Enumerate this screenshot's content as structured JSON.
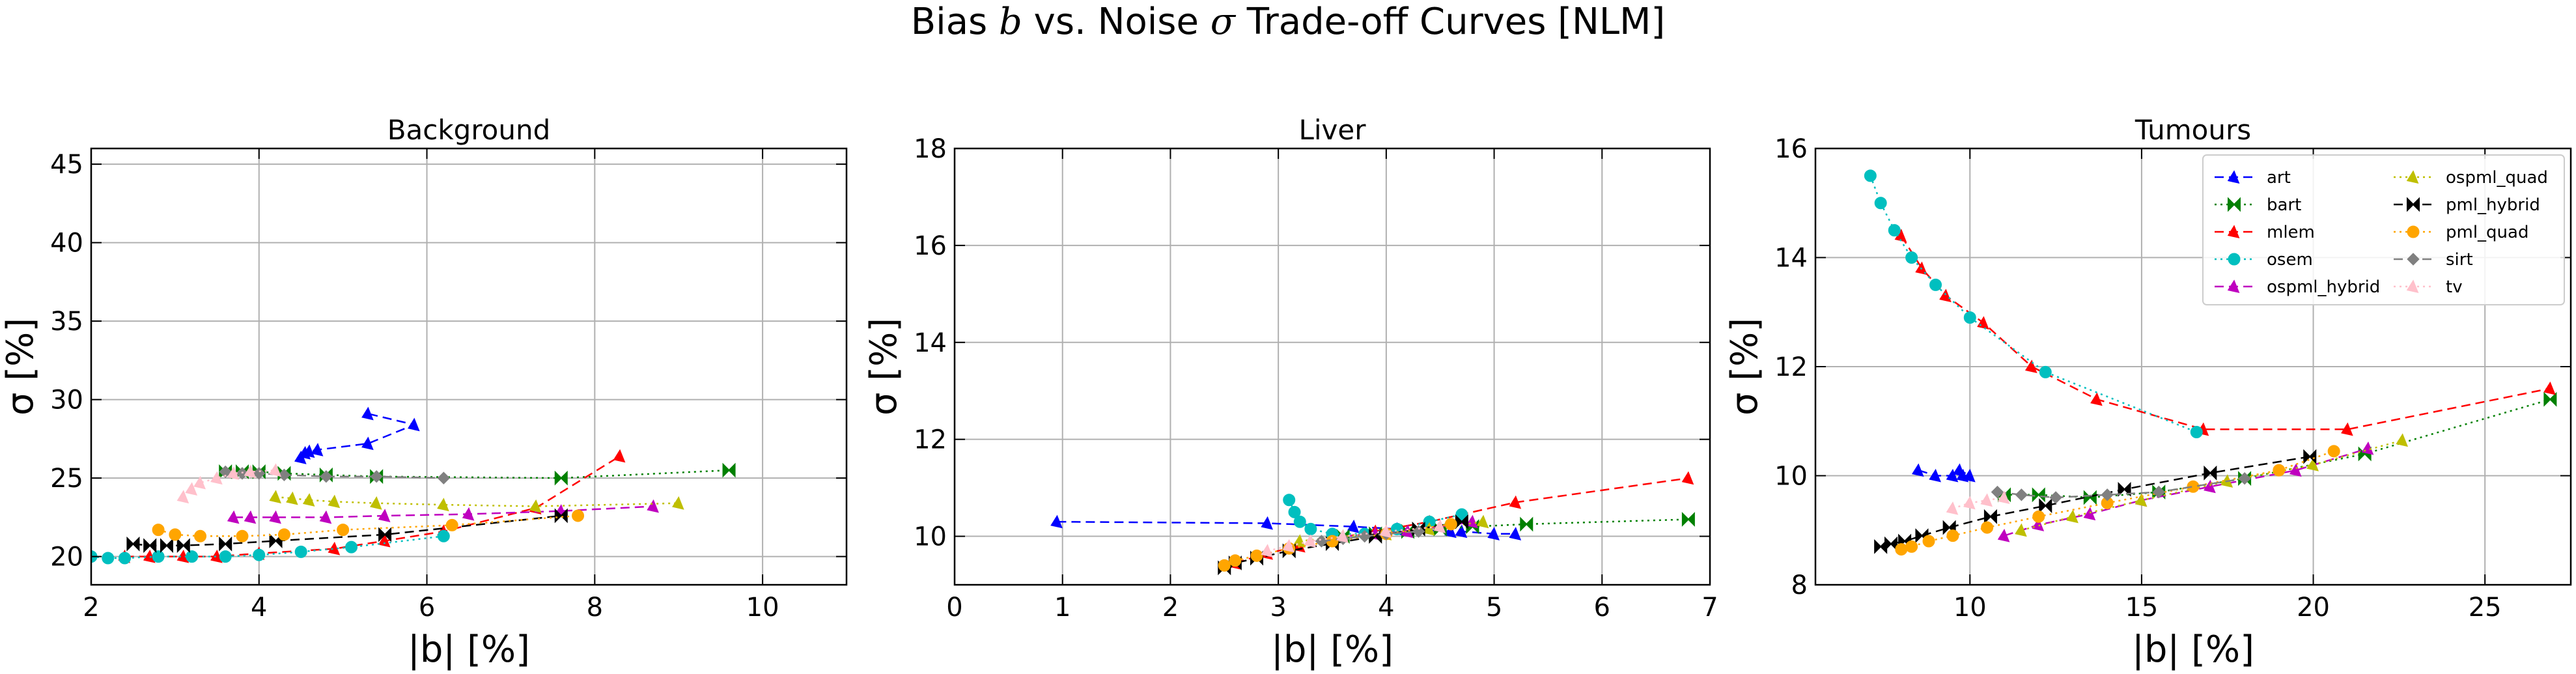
{
  "figure": {
    "title": "Bias b vs. Noise σ Trade-off Curves [NLM]",
    "title_parts": [
      "Bias ",
      "b",
      " vs. Noise ",
      "σ",
      " Trade-off Curves [NLM]"
    ]
  },
  "series_styles": [
    {
      "name": "art",
      "color": "#0000ff",
      "dash": "14 8",
      "marker": "tri"
    },
    {
      "name": "bart",
      "color": "#008000",
      "dash": "3 6",
      "marker": "bowtie"
    },
    {
      "name": "mlem",
      "color": "#ff0000",
      "dash": "14 8",
      "marker": "tri"
    },
    {
      "name": "osem",
      "color": "#00bfbf",
      "dash": "3 6",
      "marker": "circle"
    },
    {
      "name": "ospml_hybrid",
      "color": "#bf00bf",
      "dash": "14 8",
      "marker": "tri"
    },
    {
      "name": "ospml_quad",
      "color": "#bfbf00",
      "dash": "3 6",
      "marker": "tri"
    },
    {
      "name": "pml_hybrid",
      "color": "#000000",
      "dash": "14 8",
      "marker": "bowtie"
    },
    {
      "name": "pml_quad",
      "color": "#ffa500",
      "dash": "3 6",
      "marker": "circle"
    },
    {
      "name": "sirt",
      "color": "#808080",
      "dash": "14 8",
      "marker": "diamond"
    },
    {
      "name": "tv",
      "color": "#ffc0cb",
      "dash": "3 6",
      "marker": "tri"
    }
  ],
  "chart_data": [
    {
      "type": "line",
      "title": "Background",
      "xlabel": "|b| [%]",
      "ylabel": "σ [%]",
      "xlim": [
        2,
        11
      ],
      "ylim": [
        18.2,
        46
      ],
      "xticks": [
        2,
        4,
        6,
        8,
        10
      ],
      "yticks": [
        20,
        25,
        30,
        35,
        40,
        45
      ],
      "grid": true,
      "legend": false,
      "series": [
        {
          "name": "art",
          "x": [
            4.5,
            4.55,
            4.6,
            4.7,
            5.3,
            5.85,
            5.3
          ],
          "y": [
            26.3,
            26.6,
            26.7,
            26.8,
            27.2,
            28.4,
            29.1
          ]
        },
        {
          "name": "bart",
          "x": [
            3.6,
            3.8,
            4.0,
            4.3,
            4.8,
            5.4,
            7.6,
            9.6
          ],
          "y": [
            25.4,
            25.4,
            25.4,
            25.3,
            25.2,
            25.1,
            25.0,
            25.5
          ]
        },
        {
          "name": "mlem",
          "x": [
            2.4,
            2.7,
            3.1,
            3.5,
            4.0,
            4.9,
            5.5,
            6.2,
            7.3,
            8.3
          ],
          "y": [
            20.0,
            20.0,
            20.0,
            20.0,
            20.2,
            20.5,
            21.0,
            21.6,
            23.1,
            26.4
          ]
        },
        {
          "name": "osem",
          "x": [
            2.0,
            2.2,
            2.4,
            2.8,
            3.2,
            3.6,
            4.0,
            4.5,
            5.1,
            6.2
          ],
          "y": [
            20.0,
            19.9,
            19.9,
            20.0,
            20.0,
            20.0,
            20.1,
            20.3,
            20.6,
            21.3
          ]
        },
        {
          "name": "ospml_hybrid",
          "x": [
            3.7,
            3.9,
            4.2,
            4.8,
            5.5,
            6.5,
            7.6,
            8.7
          ],
          "y": [
            22.5,
            22.5,
            22.5,
            22.5,
            22.6,
            22.7,
            22.9,
            23.2
          ]
        },
        {
          "name": "ospml_quad",
          "x": [
            4.2,
            4.4,
            4.6,
            4.9,
            5.4,
            6.2,
            7.3,
            9.0
          ],
          "y": [
            23.8,
            23.7,
            23.6,
            23.5,
            23.4,
            23.3,
            23.2,
            23.4
          ]
        },
        {
          "name": "pml_hybrid",
          "x": [
            2.5,
            2.7,
            2.9,
            3.1,
            3.6,
            4.2,
            5.5,
            7.6
          ],
          "y": [
            20.8,
            20.7,
            20.7,
            20.7,
            20.8,
            21.0,
            21.4,
            22.6
          ]
        },
        {
          "name": "pml_quad",
          "x": [
            2.8,
            3.0,
            3.3,
            3.8,
            4.3,
            5.0,
            6.3,
            7.8
          ],
          "y": [
            21.7,
            21.4,
            21.3,
            21.3,
            21.4,
            21.7,
            22.0,
            22.6
          ]
        },
        {
          "name": "sirt",
          "x": [
            3.6,
            3.8,
            4.0,
            4.3,
            4.8,
            5.4,
            6.2
          ],
          "y": [
            25.4,
            25.3,
            25.3,
            25.2,
            25.1,
            25.1,
            25.0
          ]
        },
        {
          "name": "tv",
          "x": [
            3.1,
            3.2,
            3.3,
            3.5,
            3.7,
            3.9,
            4.2
          ],
          "y": [
            23.8,
            24.3,
            24.7,
            25.0,
            25.3,
            25.4,
            25.5
          ]
        }
      ]
    },
    {
      "type": "line",
      "title": "Liver",
      "xlabel": "|b| [%]",
      "ylabel": "σ [%]",
      "xlim": [
        0,
        7
      ],
      "ylim": [
        9,
        18
      ],
      "xticks": [
        0,
        1,
        2,
        3,
        4,
        5,
        6,
        7
      ],
      "yticks": [
        10,
        12,
        14,
        16,
        18
      ],
      "grid": true,
      "legend": false,
      "series": [
        {
          "name": "art",
          "x": [
            0.95,
            2.9,
            3.7,
            4.1,
            4.6,
            4.7,
            5.0,
            5.2
          ],
          "y": [
            10.3,
            10.27,
            10.2,
            10.15,
            10.1,
            10.1,
            10.05,
            10.05
          ]
        },
        {
          "name": "bart",
          "x": [
            3.6,
            3.9,
            4.2,
            4.5,
            4.8,
            5.3,
            6.8
          ],
          "y": [
            10.0,
            10.05,
            10.1,
            10.15,
            10.2,
            10.25,
            10.35
          ]
        },
        {
          "name": "mlem",
          "x": [
            2.6,
            2.9,
            3.2,
            3.5,
            3.9,
            4.4,
            5.2,
            6.8
          ],
          "y": [
            9.45,
            9.65,
            9.8,
            9.95,
            10.1,
            10.3,
            10.7,
            11.2
          ]
        },
        {
          "name": "osem",
          "x": [
            3.1,
            3.15,
            3.2,
            3.3,
            3.5,
            3.8,
            4.1,
            4.4,
            4.7
          ],
          "y": [
            10.75,
            10.5,
            10.3,
            10.15,
            10.05,
            10.05,
            10.15,
            10.3,
            10.45
          ]
        },
        {
          "name": "ospml_hybrid",
          "x": [
            3.6,
            3.9,
            4.2,
            4.5,
            4.8
          ],
          "y": [
            10.0,
            10.05,
            10.1,
            10.2,
            10.3
          ]
        },
        {
          "name": "ospml_quad",
          "x": [
            3.2,
            3.6,
            4.0,
            4.4,
            4.9
          ],
          "y": [
            9.9,
            10.0,
            10.05,
            10.15,
            10.3
          ]
        },
        {
          "name": "pml_hybrid",
          "x": [
            2.5,
            2.6,
            2.8,
            3.1,
            3.5,
            3.9,
            4.3,
            4.7
          ],
          "y": [
            9.35,
            9.45,
            9.55,
            9.7,
            9.85,
            10.0,
            10.15,
            10.3
          ]
        },
        {
          "name": "pml_quad",
          "x": [
            2.5,
            2.6,
            2.8,
            3.1,
            3.5,
            4.0,
            4.6
          ],
          "y": [
            9.4,
            9.5,
            9.6,
            9.75,
            9.9,
            10.05,
            10.25
          ]
        },
        {
          "name": "sirt",
          "x": [
            3.4,
            3.6,
            3.8,
            4.0,
            4.3
          ],
          "y": [
            9.9,
            9.95,
            10.0,
            10.05,
            10.1
          ]
        },
        {
          "name": "tv",
          "x": [
            2.9,
            3.1,
            3.3,
            3.6,
            4.0,
            4.5
          ],
          "y": [
            9.7,
            9.8,
            9.9,
            10.0,
            10.1,
            10.2
          ]
        }
      ]
    },
    {
      "type": "line",
      "title": "Tumours",
      "xlabel": "|b| [%]",
      "ylabel": "σ [%]",
      "xlim": [
        5.5,
        27.5
      ],
      "ylim": [
        8,
        16
      ],
      "xticks": [
        10,
        15,
        20,
        25
      ],
      "yticks": [
        8,
        10,
        12,
        14,
        16
      ],
      "grid": true,
      "legend": "top-right",
      "series": [
        {
          "name": "art",
          "x": [
            8.5,
            9.0,
            9.5,
            9.8,
            10.0,
            9.7
          ],
          "y": [
            10.1,
            10.0,
            10.0,
            10.0,
            10.0,
            10.1
          ]
        },
        {
          "name": "bart",
          "x": [
            11.0,
            12.0,
            13.5,
            15.5,
            18.0,
            21.5,
            26.9
          ],
          "y": [
            9.65,
            9.65,
            9.6,
            9.7,
            9.95,
            10.4,
            11.4
          ]
        },
        {
          "name": "mlem",
          "x": [
            8.0,
            8.6,
            9.3,
            10.4,
            11.8,
            13.7,
            16.8,
            21.0,
            26.9
          ],
          "y": [
            14.4,
            13.8,
            13.3,
            12.8,
            12.0,
            11.4,
            10.85,
            10.85,
            11.6
          ]
        },
        {
          "name": "osem",
          "x": [
            7.1,
            7.4,
            7.8,
            8.3,
            9.0,
            10.0,
            12.2,
            16.6
          ],
          "y": [
            15.5,
            15.0,
            14.5,
            14.0,
            13.5,
            12.9,
            11.9,
            10.8
          ]
        },
        {
          "name": "ospml_hybrid",
          "x": [
            11.0,
            12.0,
            13.5,
            15.0,
            17.0,
            19.5,
            21.6
          ],
          "y": [
            8.9,
            9.1,
            9.3,
            9.55,
            9.8,
            10.1,
            10.5
          ]
        },
        {
          "name": "ospml_quad",
          "x": [
            11.5,
            13.0,
            15.0,
            17.5,
            20.0,
            22.6
          ],
          "y": [
            9.0,
            9.25,
            9.55,
            9.9,
            10.2,
            10.65
          ]
        },
        {
          "name": "pml_hybrid",
          "x": [
            7.4,
            7.7,
            8.1,
            8.6,
            9.4,
            10.6,
            12.2,
            14.5,
            17.0,
            19.9
          ],
          "y": [
            8.7,
            8.75,
            8.8,
            8.9,
            9.05,
            9.25,
            9.45,
            9.75,
            10.05,
            10.35
          ]
        },
        {
          "name": "pml_quad",
          "x": [
            8.0,
            8.3,
            8.8,
            9.5,
            10.5,
            12.0,
            14.0,
            16.5,
            19.0,
            20.6
          ],
          "y": [
            8.65,
            8.7,
            8.8,
            8.9,
            9.05,
            9.25,
            9.5,
            9.8,
            10.1,
            10.45
          ]
        },
        {
          "name": "sirt",
          "x": [
            10.8,
            11.5,
            12.5,
            14.0,
            15.5,
            18.0
          ],
          "y": [
            9.7,
            9.65,
            9.6,
            9.65,
            9.7,
            9.95
          ]
        },
        {
          "name": "tv",
          "x": [
            9.5,
            10.0,
            10.5,
            11.0
          ],
          "y": [
            9.4,
            9.5,
            9.55,
            9.6
          ]
        }
      ]
    }
  ]
}
